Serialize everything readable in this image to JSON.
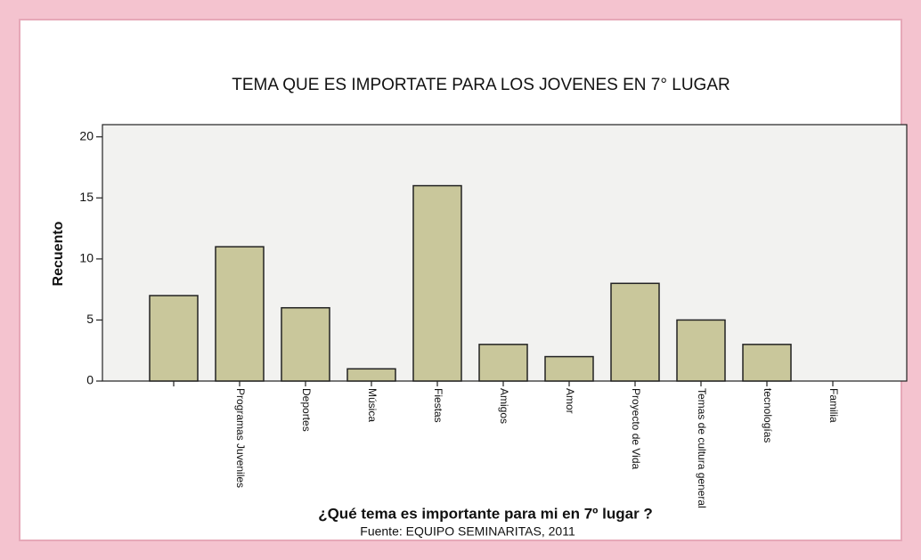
{
  "chart_data": {
    "type": "bar",
    "title": "TEMA QUE ES IMPORTATE PARA LOS JOVENES EN 7° LUGAR",
    "y_label": "Recuento",
    "x_label": "¿Qué tema es importante para mi en 7º lugar ?",
    "source": "Fuente: EQUIPO SEMINARITAS, 2011",
    "categories": [
      null,
      "Programas Juveniles",
      "Deportes",
      "Música",
      "Fiestas",
      "Amigos",
      "Amor",
      "Proyecto de Vida",
      "Temas de cultura general",
      "tecnologías",
      "Familia"
    ],
    "values": [
      7,
      11,
      6,
      1,
      16,
      3,
      2,
      8,
      5,
      3,
      0
    ],
    "color": "#c9c79b",
    "ylim": [
      0,
      21
    ],
    "yticks": [
      0,
      5,
      10,
      15,
      20
    ]
  }
}
